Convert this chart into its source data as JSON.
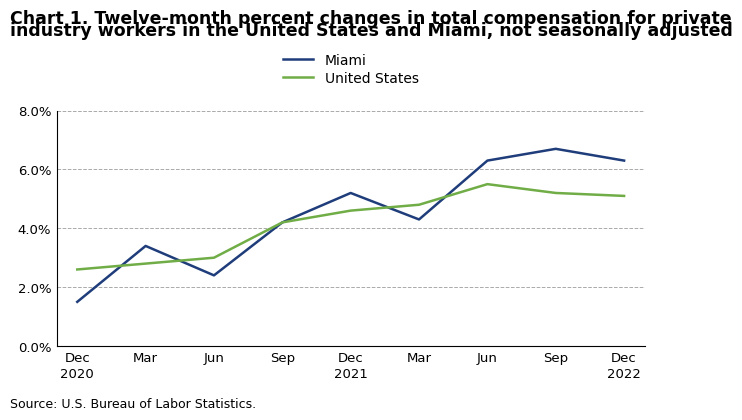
{
  "title_line1": "Chart 1. Twelve-month percent changes in total compensation for private",
  "title_line2": "industry workers in the United States and Miami, not seasonally adjusted",
  "x_labels": [
    "Dec\n2020",
    "Mar",
    "Jun",
    "Sep",
    "Dec\n2021",
    "Mar",
    "Jun",
    "Sep",
    "Dec\n2022"
  ],
  "miami_values": [
    1.5,
    3.4,
    2.4,
    4.2,
    5.2,
    4.3,
    6.3,
    6.7,
    6.3
  ],
  "us_values": [
    2.6,
    2.8,
    3.0,
    4.2,
    4.6,
    4.8,
    5.5,
    5.2,
    5.1
  ],
  "miami_color": "#1f3d7a",
  "us_color": "#70ad47",
  "ylim": [
    0.0,
    8.0
  ],
  "yticks": [
    0.0,
    2.0,
    4.0,
    6.0,
    8.0
  ],
  "legend_miami": "Miami",
  "legend_us": "United States",
  "source_text": "Source: U.S. Bureau of Labor Statistics.",
  "title_fontsize": 12.5,
  "legend_fontsize": 10,
  "source_fontsize": 9,
  "tick_fontsize": 9.5,
  "line_width": 1.8
}
